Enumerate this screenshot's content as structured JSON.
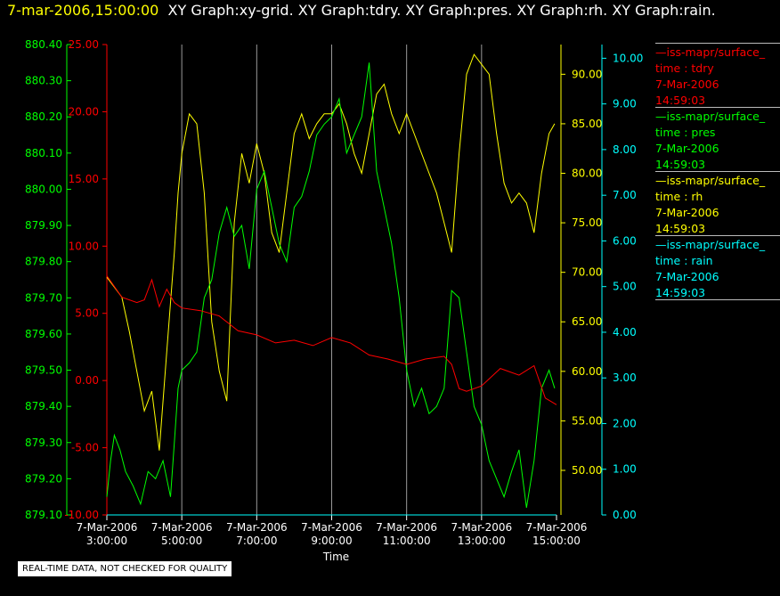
{
  "header": {
    "timestamp": "7-mar-2006,15:00:00",
    "graphs": "XY Graph:xy-grid.  XY Graph:tdry.  XY Graph:pres.  XY Graph:rh.  XY Graph:rain."
  },
  "quality_note": "REAL-TIME DATA, NOT CHECKED FOR QUALITY",
  "legend": [
    {
      "series": "—iss-mapr/surface_",
      "var": "time : tdry",
      "date": "7-Mar-2006",
      "time": "14:59:03",
      "color": "#ff0000"
    },
    {
      "series": "—iss-mapr/surface_",
      "var": "time : pres",
      "date": "7-Mar-2006",
      "time": "14:59:03",
      "color": "#00ff00"
    },
    {
      "series": "—iss-mapr/surface_",
      "var": "time : rh",
      "date": "7-Mar-2006",
      "time": "14:59:03",
      "color": "#ffff00"
    },
    {
      "series": "—iss-mapr/surface_",
      "var": "time : rain",
      "date": "7-Mar-2006",
      "time": "14:59:03",
      "color": "#00ffff"
    }
  ],
  "chart_data": {
    "type": "line",
    "xlabel": "Time",
    "x_ticks": [
      {
        "date": "7-Mar-2006",
        "time": "3:00:00",
        "hour": 3
      },
      {
        "date": "7-Mar-2006",
        "time": "5:00:00",
        "hour": 5
      },
      {
        "date": "7-Mar-2006",
        "time": "7:00:00",
        "hour": 7
      },
      {
        "date": "7-Mar-2006",
        "time": "9:00:00",
        "hour": 9
      },
      {
        "date": "7-Mar-2006",
        "time": "11:00:00",
        "hour": 11
      },
      {
        "date": "7-Mar-2006",
        "time": "13:00:00",
        "hour": 13
      },
      {
        "date": "7-Mar-2006",
        "time": "15:00:00",
        "hour": 15
      }
    ],
    "xlim": [
      3,
      15
    ],
    "vertical_grid": true,
    "axes": {
      "pres": {
        "color": "#00ff00",
        "ylim": [
          879.1,
          880.4
        ],
        "ticks": [
          "879.10",
          "879.20",
          "879.30",
          "879.40",
          "879.50",
          "879.60",
          "879.70",
          "879.80",
          "879.90",
          "880.00",
          "880.10",
          "880.20",
          "880.30",
          "880.40"
        ]
      },
      "tdry": {
        "color": "#ff0000",
        "ylim": [
          -10,
          25
        ],
        "ticks": [
          "-10.00",
          "-5.00",
          "0.00",
          "5.00",
          "10.00",
          "15.00",
          "20.00",
          "25.00"
        ]
      },
      "rh": {
        "color": "#ffff00",
        "ylim": [
          45.5,
          93
        ],
        "ticks": [
          "50.00",
          "55.00",
          "60.00",
          "65.00",
          "70.00",
          "75.00",
          "80.00",
          "85.00",
          "90.00"
        ]
      },
      "rain": {
        "color": "#00ffff",
        "ylim": [
          0,
          10.3
        ],
        "ticks": [
          "0.00",
          "1.00",
          "2.00",
          "3.00",
          "4.00",
          "5.00",
          "6.00",
          "7.00",
          "8.00",
          "9.00",
          "10.00"
        ]
      }
    },
    "series": [
      {
        "name": "tdry",
        "axis": "tdry",
        "color": "#ff0000",
        "x": [
          3.0,
          3.4,
          3.8,
          4.0,
          4.2,
          4.4,
          4.6,
          4.8,
          5.0,
          5.5,
          6.0,
          6.5,
          7.0,
          7.5,
          8.0,
          8.5,
          9.0,
          9.5,
          10.0,
          10.5,
          11.0,
          11.5,
          12.0,
          12.2,
          12.4,
          12.6,
          13.0,
          13.5,
          14.0,
          14.4,
          14.7,
          15.0
        ],
        "y": [
          7.8,
          6.2,
          5.8,
          6.0,
          7.5,
          5.5,
          6.8,
          5.8,
          5.4,
          5.2,
          4.8,
          3.7,
          3.4,
          2.8,
          3.0,
          2.6,
          3.2,
          2.8,
          1.9,
          1.6,
          1.2,
          1.6,
          1.8,
          1.2,
          -0.6,
          -0.8,
          -0.4,
          0.9,
          0.4,
          1.1,
          -1.3,
          -1.8
        ]
      },
      {
        "name": "pres",
        "axis": "pres",
        "color": "#00ff00",
        "x": [
          3.0,
          3.1,
          3.2,
          3.35,
          3.5,
          3.7,
          3.9,
          4.1,
          4.3,
          4.5,
          4.7,
          4.8,
          4.9,
          5.0,
          5.2,
          5.4,
          5.6,
          5.8,
          6.0,
          6.2,
          6.4,
          6.6,
          6.8,
          7.0,
          7.2,
          7.4,
          7.6,
          7.8,
          8.0,
          8.2,
          8.4,
          8.6,
          8.8,
          9.0,
          9.2,
          9.4,
          9.6,
          9.8,
          10.0,
          10.2,
          10.4,
          10.6,
          10.8,
          11.0,
          11.2,
          11.4,
          11.6,
          11.8,
          12.0,
          12.2,
          12.4,
          12.6,
          12.8,
          13.0,
          13.2,
          13.4,
          13.6,
          13.8,
          14.0,
          14.2,
          14.4,
          14.6,
          14.8,
          14.95
        ],
        "y": [
          879.15,
          879.25,
          879.32,
          879.28,
          879.22,
          879.18,
          879.13,
          879.22,
          879.2,
          879.25,
          879.15,
          879.3,
          879.45,
          879.5,
          879.52,
          879.55,
          879.7,
          879.75,
          879.88,
          879.95,
          879.87,
          879.9,
          879.78,
          880.0,
          880.05,
          879.95,
          879.85,
          879.8,
          879.95,
          879.98,
          880.05,
          880.15,
          880.18,
          880.2,
          880.25,
          880.1,
          880.15,
          880.2,
          880.35,
          880.05,
          879.95,
          879.85,
          879.7,
          879.5,
          879.4,
          879.45,
          879.38,
          879.4,
          879.45,
          879.72,
          879.7,
          879.55,
          879.4,
          879.35,
          879.25,
          879.2,
          879.15,
          879.22,
          879.28,
          879.12,
          879.25,
          879.45,
          879.5,
          879.45
        ]
      },
      {
        "name": "rh",
        "axis": "rh",
        "color": "#ffff00",
        "x": [
          3.0,
          3.2,
          3.4,
          3.6,
          3.8,
          4.0,
          4.2,
          4.4,
          4.6,
          4.8,
          4.9,
          5.0,
          5.2,
          5.4,
          5.6,
          5.8,
          6.0,
          6.2,
          6.4,
          6.6,
          6.8,
          7.0,
          7.2,
          7.4,
          7.6,
          7.8,
          8.0,
          8.2,
          8.4,
          8.6,
          8.8,
          9.0,
          9.2,
          9.4,
          9.6,
          9.8,
          10.0,
          10.2,
          10.4,
          10.6,
          10.8,
          11.0,
          11.2,
          11.4,
          11.6,
          11.8,
          12.0,
          12.2,
          12.4,
          12.6,
          12.8,
          13.0,
          13.2,
          13.4,
          13.6,
          13.8,
          14.0,
          14.2,
          14.4,
          14.6,
          14.8,
          14.95
        ],
        "y": [
          69.5,
          68.5,
          67.5,
          64.0,
          60.0,
          56.0,
          58.0,
          52.0,
          62.0,
          72.0,
          78.0,
          82.0,
          86.0,
          85.0,
          78.0,
          65.0,
          60.0,
          57.0,
          75.0,
          82.0,
          79.0,
          83.0,
          80.0,
          74.0,
          72.0,
          78.0,
          84.0,
          86.0,
          83.5,
          85.0,
          86.0,
          86.0,
          87.0,
          85.0,
          82.0,
          80.0,
          84.0,
          88.0,
          89.0,
          86.0,
          84.0,
          86.0,
          84.0,
          82.0,
          80.0,
          78.0,
          75.0,
          72.0,
          82.0,
          90.0,
          92.0,
          91.0,
          90.0,
          84.0,
          79.0,
          77.0,
          78.0,
          77.0,
          74.0,
          80.0,
          84.0,
          85.0
        ]
      },
      {
        "name": "rain",
        "axis": "rain",
        "color": "#00ffff",
        "x": [
          3.0,
          15.0
        ],
        "y": [
          0.0,
          0.0
        ]
      }
    ]
  }
}
